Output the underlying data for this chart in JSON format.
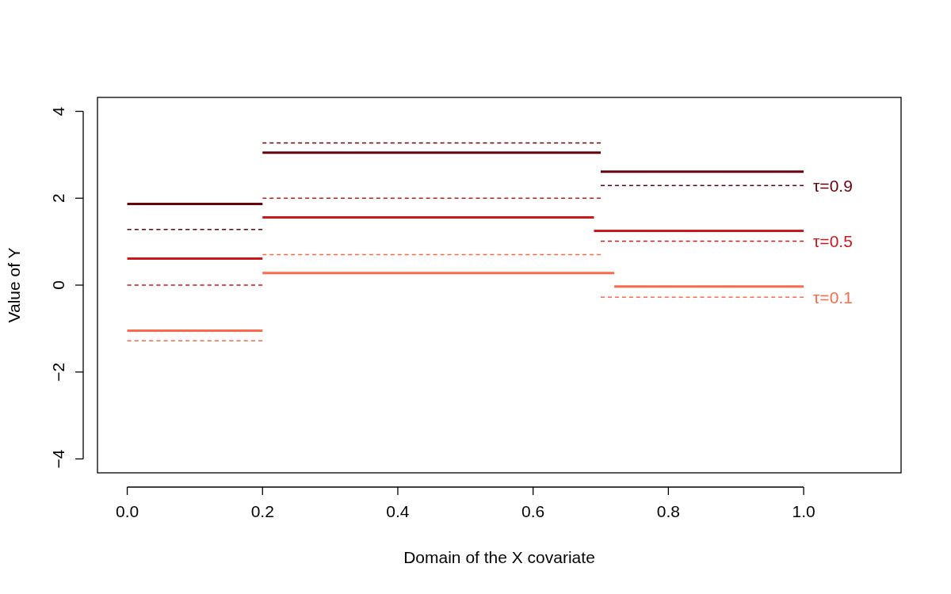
{
  "chart_data": {
    "type": "line",
    "xlabel": "Domain of the X covariate",
    "ylabel": "Value of Y",
    "xlim": [
      -0.044,
      1.144
    ],
    "ylim": [
      -4.32,
      4.32
    ],
    "xticks": [
      {
        "value": 0,
        "label": "0.0"
      },
      0.2,
      0.4,
      0.6,
      0.8,
      {
        "value": 1,
        "label": "1.0"
      }
    ],
    "yticks": [
      -4,
      -2,
      0,
      2,
      4
    ],
    "series": [
      {
        "color": "#67000d",
        "line_style": "solid",
        "x": [
          0,
          0.2
        ],
        "values": [
          1.87,
          1.87
        ]
      },
      {
        "color": "#67000d",
        "line_style": "solid",
        "x": [
          0.2,
          0.7
        ],
        "values": [
          3.05,
          3.05
        ]
      },
      {
        "color": "#67000d",
        "line_style": "solid",
        "x": [
          0.7,
          1.0
        ],
        "values": [
          2.61,
          2.61
        ]
      },
      {
        "color": "#67000d",
        "line_style": "dashed",
        "x": [
          0,
          0.2
        ],
        "values": [
          1.28,
          1.28
        ]
      },
      {
        "color": "#67000d",
        "line_style": "dashed",
        "x": [
          0.2,
          0.7
        ],
        "values": [
          3.27,
          3.27
        ]
      },
      {
        "name": "τ=0.9",
        "color": "#67000d",
        "line_style": "dashed",
        "x": [
          0.7,
          1.0
        ],
        "values": [
          2.29,
          2.29
        ]
      },
      {
        "color": "#cb181d",
        "line_style": "solid",
        "x": [
          0,
          0.2
        ],
        "values": [
          0.61,
          0.61
        ]
      },
      {
        "color": "#cb181d",
        "line_style": "solid",
        "x": [
          0.2,
          0.69
        ],
        "values": [
          1.56,
          1.56
        ]
      },
      {
        "color": "#cb181d",
        "line_style": "solid",
        "x": [
          0.69,
          1.0
        ],
        "values": [
          1.25,
          1.25
        ]
      },
      {
        "color": "#cb181d",
        "line_style": "dashed",
        "x": [
          0,
          0.2
        ],
        "values": [
          0,
          0
        ]
      },
      {
        "color": "#cb181d",
        "line_style": "dashed",
        "x": [
          0.2,
          0.7
        ],
        "values": [
          2.0,
          2.0
        ]
      },
      {
        "name": "τ=0.5",
        "color": "#cb181d",
        "line_style": "dashed",
        "x": [
          0.7,
          1.0
        ],
        "values": [
          1.01,
          1.01
        ]
      },
      {
        "color": "#fb6a4a",
        "line_style": "solid",
        "x": [
          0,
          0.2
        ],
        "values": [
          -1.05,
          -1.05
        ]
      },
      {
        "color": "#fb6a4a",
        "line_style": "solid",
        "x": [
          0.2,
          0.72
        ],
        "values": [
          0.28,
          0.28
        ]
      },
      {
        "color": "#fb6a4a",
        "line_style": "solid",
        "x": [
          0.72,
          1.0
        ],
        "values": [
          -0.03,
          -0.03
        ]
      },
      {
        "color": "#fb6a4a",
        "line_style": "dashed",
        "x": [
          0,
          0.2
        ],
        "values": [
          -1.28,
          -1.28
        ]
      },
      {
        "color": "#fb6a4a",
        "line_style": "dashed",
        "x": [
          0.2,
          0.7
        ],
        "values": [
          0.7,
          0.7
        ]
      },
      {
        "name": "τ=0.1",
        "color": "#fb6a4a",
        "line_style": "dashed",
        "x": [
          0.7,
          1.0
        ],
        "values": [
          -0.28,
          -0.28
        ]
      }
    ]
  }
}
